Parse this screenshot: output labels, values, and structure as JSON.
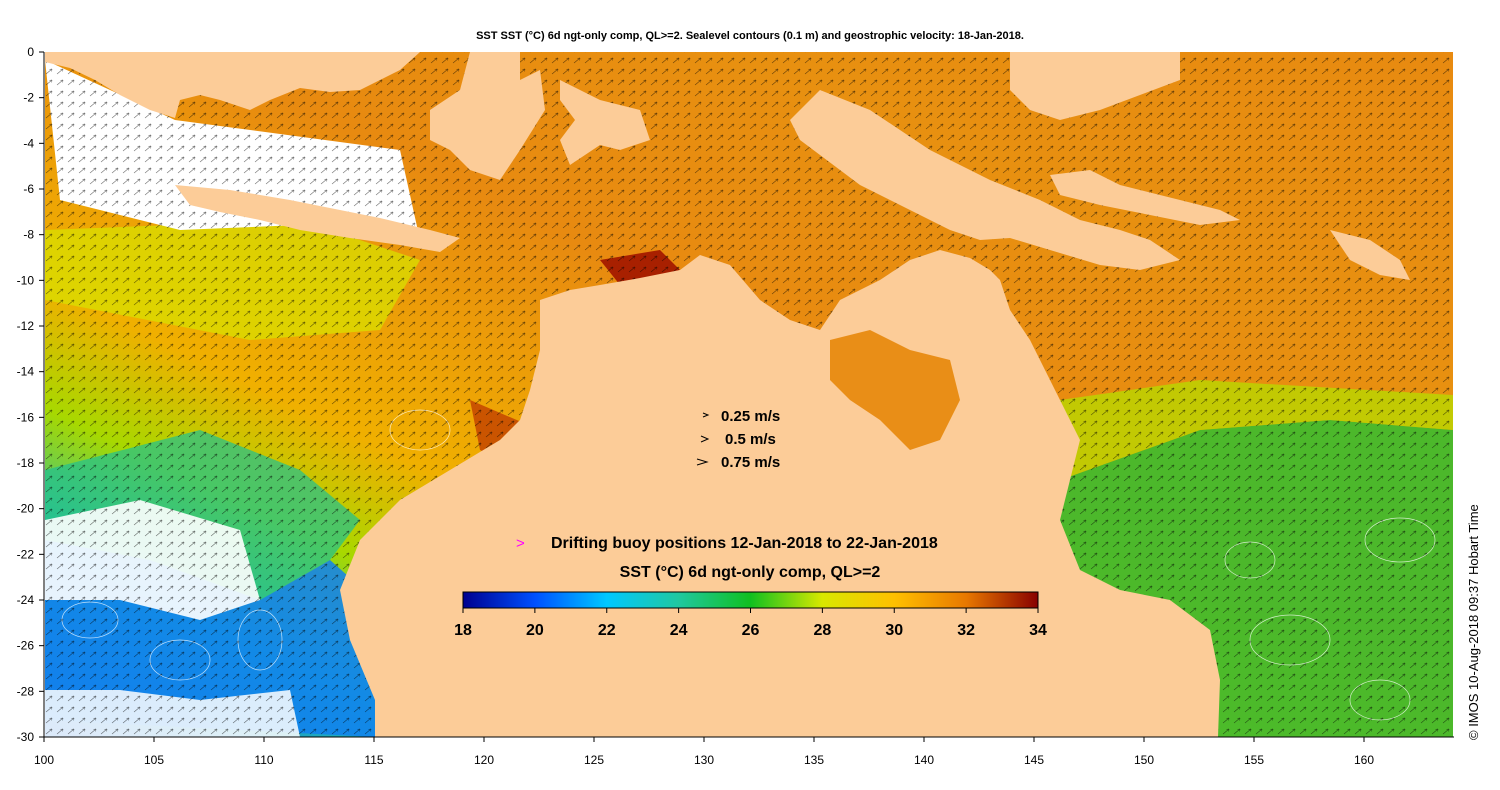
{
  "title": "SST SST (°C) 6d ngt-only comp, QL>=2. Sealevel contours (0.1 m) and geostrophic velocity: 18-Jan-2018.",
  "credit": "© IMOS 10-Aug-2018 09:37 Hobart Time",
  "map": {
    "lon_range": [
      100,
      164
    ],
    "lat_range": [
      -30,
      0
    ],
    "x_ticks": [
      "100",
      "105",
      "110",
      "115",
      "120",
      "125",
      "130",
      "135",
      "140",
      "145",
      "150",
      "155",
      "160"
    ],
    "y_ticks": [
      "0",
      "-2",
      "-4",
      "-6",
      "-8",
      "-10",
      "-12",
      "-14",
      "-16",
      "-18",
      "-20",
      "-22",
      "-24",
      "-26",
      "-28",
      "-30"
    ],
    "land_color": "#fccc98"
  },
  "velocity_legend": {
    "items": [
      {
        "label": "0.25 m/s"
      },
      {
        "label": "0.5 m/s"
      },
      {
        "label": "0.75 m/s"
      }
    ]
  },
  "buoy_legend": {
    "marker": ">",
    "marker_color": "#ff00ff",
    "label": "Drifting buoy positions 12-Jan-2018 to 22-Jan-2018"
  },
  "colorbar": {
    "title": "SST (°C) 6d ngt-only comp, QL>=2",
    "range": [
      18,
      34
    ],
    "tick_labels": [
      "18",
      "20",
      "22",
      "24",
      "26",
      "28",
      "30",
      "32",
      "34"
    ],
    "colors": [
      "#00008f",
      "#0050ff",
      "#00c8ff",
      "#20c8a0",
      "#10c020",
      "#d8e800",
      "#ffc000",
      "#e87800",
      "#880000"
    ]
  }
}
